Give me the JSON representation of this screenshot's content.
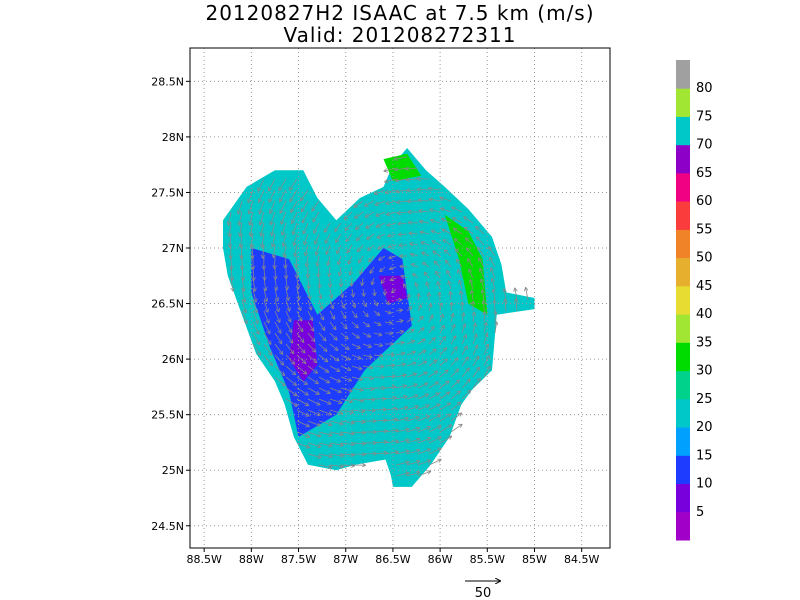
{
  "title": {
    "line1": "20120827H2 ISAAC at 7.5 km (m/s)",
    "line2": "Valid: 201208272311"
  },
  "axes": {
    "lon_range": [
      -88.65,
      -84.2
    ],
    "lat_range": [
      24.3,
      28.8
    ],
    "x_ticks": [
      {
        "value": -88.5,
        "label": "88.5W"
      },
      {
        "value": -88.0,
        "label": "88W"
      },
      {
        "value": -87.5,
        "label": "87.5W"
      },
      {
        "value": -87.0,
        "label": "87W"
      },
      {
        "value": -86.5,
        "label": "86.5W"
      },
      {
        "value": -86.0,
        "label": "86W"
      },
      {
        "value": -85.5,
        "label": "85.5W"
      },
      {
        "value": -85.0,
        "label": "85W"
      },
      {
        "value": -84.5,
        "label": "84.5W"
      }
    ],
    "y_ticks": [
      {
        "value": 24.5,
        "label": "24.5N"
      },
      {
        "value": 25.0,
        "label": "25N"
      },
      {
        "value": 25.5,
        "label": "25.5N"
      },
      {
        "value": 26.0,
        "label": "26N"
      },
      {
        "value": 26.5,
        "label": "26.5N"
      },
      {
        "value": 27.0,
        "label": "27N"
      },
      {
        "value": 27.5,
        "label": "27.5N"
      },
      {
        "value": 28.0,
        "label": "28N"
      },
      {
        "value": 28.5,
        "label": "28.5N"
      }
    ],
    "grid": "dotted"
  },
  "colorbar": {
    "labels": [
      "5",
      "10",
      "15",
      "20",
      "25",
      "30",
      "35",
      "40",
      "45",
      "50",
      "55",
      "60",
      "65",
      "70",
      "75",
      "80"
    ],
    "colors": [
      "#a000c8",
      "#7800dc",
      "#1e3cff",
      "#00a0ff",
      "#00c8c8",
      "#00d28c",
      "#00dc00",
      "#a0e632",
      "#e6dc32",
      "#e6af2d",
      "#f08228",
      "#fa3c3c",
      "#f00082",
      "#8c00c8",
      "#00c8c8",
      "#a0e632",
      "#a0a0a0"
    ]
  },
  "vector_reference": {
    "label": "50"
  },
  "wind_field": {
    "center": {
      "lon": -86.45,
      "lat": 26.6
    },
    "swath_outline": [
      [
        -88.3,
        27.25
      ],
      [
        -88.05,
        27.55
      ],
      [
        -87.75,
        27.7
      ],
      [
        -87.45,
        27.7
      ],
      [
        -87.3,
        27.45
      ],
      [
        -87.1,
        27.25
      ],
      [
        -86.85,
        27.45
      ],
      [
        -86.6,
        27.55
      ],
      [
        -86.5,
        27.75
      ],
      [
        -86.35,
        27.9
      ],
      [
        -86.15,
        27.7
      ],
      [
        -85.95,
        27.55
      ],
      [
        -85.7,
        27.35
      ],
      [
        -85.45,
        27.1
      ],
      [
        -85.35,
        26.85
      ],
      [
        -85.3,
        26.6
      ],
      [
        -85.0,
        26.55
      ],
      [
        -85.0,
        26.45
      ],
      [
        -85.4,
        26.4
      ],
      [
        -85.45,
        25.9
      ],
      [
        -85.75,
        25.65
      ],
      [
        -85.9,
        25.3
      ],
      [
        -86.1,
        25.05
      ],
      [
        -86.3,
        24.85
      ],
      [
        -86.5,
        24.85
      ],
      [
        -86.55,
        25.1
      ],
      [
        -86.9,
        25.05
      ],
      [
        -87.1,
        25.0
      ],
      [
        -87.4,
        25.05
      ],
      [
        -87.55,
        25.3
      ],
      [
        -87.65,
        25.6
      ],
      [
        -87.75,
        25.8
      ],
      [
        -87.95,
        26.05
      ],
      [
        -88.1,
        26.4
      ],
      [
        -88.25,
        26.75
      ],
      [
        -88.3,
        27.0
      ]
    ],
    "regions": [
      {
        "value": 23,
        "polygon": [
          [
            -86.1,
            27.4
          ],
          [
            -85.6,
            27.1
          ],
          [
            -85.4,
            26.6
          ],
          [
            -85.6,
            25.8
          ],
          [
            -86.1,
            25.2
          ],
          [
            -86.5,
            24.9
          ],
          [
            -86.7,
            25.4
          ],
          [
            -86.5,
            26.2
          ],
          [
            -86.3,
            26.9
          ]
        ]
      },
      {
        "value": 12,
        "polygon": [
          [
            -88.0,
            27.0
          ],
          [
            -87.6,
            26.9
          ],
          [
            -87.3,
            26.4
          ],
          [
            -86.9,
            26.7
          ],
          [
            -86.6,
            27.0
          ],
          [
            -86.4,
            26.9
          ],
          [
            -86.3,
            26.3
          ],
          [
            -86.8,
            25.9
          ],
          [
            -87.1,
            25.5
          ],
          [
            -87.5,
            25.3
          ],
          [
            -87.6,
            25.7
          ],
          [
            -87.8,
            26.1
          ],
          [
            -88.0,
            26.6
          ]
        ]
      },
      {
        "value": 8,
        "polygon": [
          [
            -87.55,
            26.35
          ],
          [
            -87.35,
            26.35
          ],
          [
            -87.3,
            25.95
          ],
          [
            -87.45,
            25.8
          ],
          [
            -87.6,
            26.0
          ]
        ]
      },
      {
        "value": 8,
        "polygon": [
          [
            -86.65,
            26.75
          ],
          [
            -86.4,
            26.75
          ],
          [
            -86.35,
            26.55
          ],
          [
            -86.55,
            26.5
          ]
        ]
      },
      {
        "value": 31,
        "polygon": [
          [
            -85.95,
            27.3
          ],
          [
            -85.7,
            27.15
          ],
          [
            -85.55,
            26.9
          ],
          [
            -85.5,
            26.4
          ],
          [
            -85.7,
            26.5
          ],
          [
            -85.8,
            26.9
          ]
        ]
      },
      {
        "value": 33,
        "polygon": [
          [
            -86.6,
            27.8
          ],
          [
            -86.35,
            27.85
          ],
          [
            -86.2,
            27.65
          ],
          [
            -86.5,
            27.6
          ]
        ]
      }
    ]
  }
}
